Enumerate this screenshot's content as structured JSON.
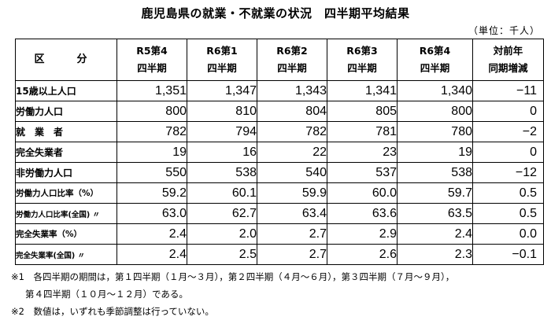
{
  "title": "鹿児島県の就業・不就業の状況　四半期平均結果",
  "unit": "（単位：千人）",
  "table": {
    "header": {
      "kubun": "区　分",
      "columns": [
        {
          "line1": "R5第4",
          "line2": "四半期"
        },
        {
          "line1": "R6第1",
          "line2": "四半期"
        },
        {
          "line1": "R6第2",
          "line2": "四半期"
        },
        {
          "line1": "R6第3",
          "line2": "四半期"
        },
        {
          "line1": "R6第4",
          "line2": "四半期"
        },
        {
          "line1": "対前年",
          "line2": "同期増減"
        }
      ]
    },
    "rows": [
      {
        "label": "15歳以上人口",
        "values": [
          "1,351",
          "1,347",
          "1,343",
          "1,341",
          "1,340",
          "−11"
        ]
      },
      {
        "label": "労働力人口",
        "values": [
          "800",
          "810",
          "804",
          "805",
          "800",
          "0"
        ]
      },
      {
        "label": "就　業　者",
        "values": [
          "782",
          "794",
          "782",
          "781",
          "780",
          "−2"
        ]
      },
      {
        "label": "完全失業者",
        "values": [
          "19",
          "16",
          "22",
          "23",
          "19",
          "0"
        ]
      },
      {
        "label": "非労働力人口",
        "values": [
          "550",
          "538",
          "540",
          "537",
          "538",
          "−12"
        ]
      },
      {
        "label": "労働力人口比率（%）",
        "values": [
          "59.2",
          "60.1",
          "59.9",
          "60.0",
          "59.7",
          "0.5"
        ]
      },
      {
        "label": "労働力人口比率(全国) 〃",
        "values": [
          "63.0",
          "62.7",
          "63.4",
          "63.6",
          "63.5",
          "0.5"
        ]
      },
      {
        "label": "完全失業率（%）",
        "values": [
          "2.4",
          "2.0",
          "2.7",
          "2.9",
          "2.4",
          "0.0"
        ]
      },
      {
        "label": "完全失業率(全国) 〃",
        "values": [
          "2.4",
          "2.5",
          "2.7",
          "2.6",
          "2.3",
          "−0.1"
        ]
      }
    ]
  },
  "notes": {
    "note1_line1": "※1　各四半期の期間は，第１四半期（１月～３月），第２四半期（４月～６月），第３四半期（７月～９月），",
    "note1_line2": "第４四半期（１０月～１２月）である。",
    "note2": "※2　数値は，いずれも季節調整は行っていない。"
  }
}
